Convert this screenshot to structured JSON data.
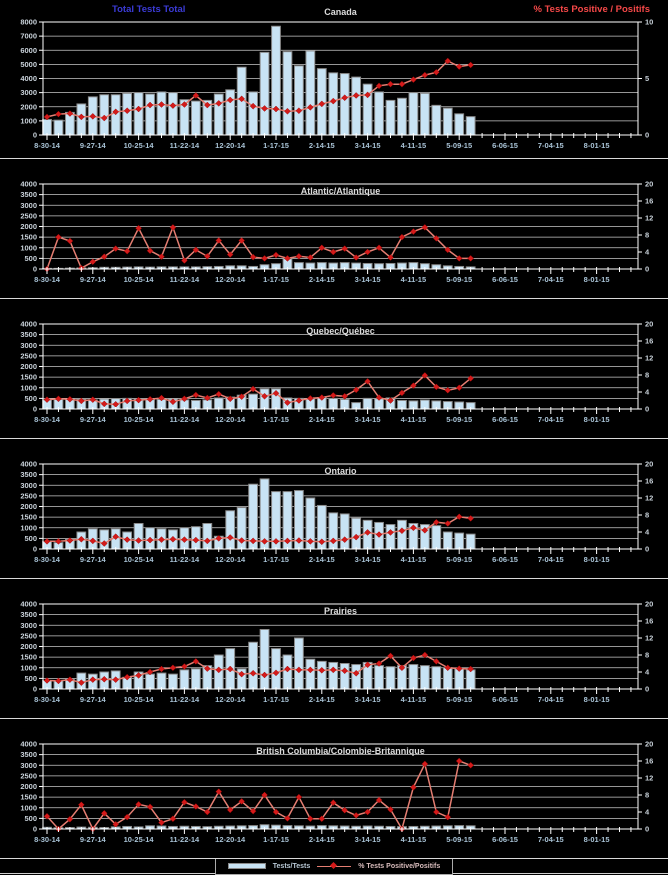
{
  "page": {
    "background": "#000000"
  },
  "header": {
    "left_axis_title": "Total Tests Total",
    "right_axis_title": "% Tests Positive / Positifs"
  },
  "legend": {
    "bar_label": "Tests/Tests",
    "line_label": "% Tests Positive/Positifs"
  },
  "colors": {
    "background": "#000000",
    "bar_fill": "#c8e3f4",
    "bar_border": "#8a8a8a",
    "line": "#e57e72",
    "marker": "#d41a1a",
    "grid": "#c9c9c9",
    "axis_frame": "#ffffff",
    "y_tick_text": "#c9d2da",
    "x_tick_text": "#a9c3d6",
    "panel_title": "#dddddd",
    "left_title": "#3b3bd6",
    "right_title": "#f54848"
  },
  "x_axis": {
    "start": "8-30-14",
    "interval": "weekly",
    "tick_labels": [
      "8-30-14",
      "9-27-14",
      "10-25-14",
      "11-22-14",
      "12-20-14",
      "1-17-15",
      "2-14-15",
      "3-14-15",
      "4-11-15",
      "5-09-15",
      "6-06-15",
      "7-04-15",
      "8-01-15"
    ]
  },
  "chart_data": [
    {
      "id": "canada",
      "type": "bar+line",
      "title": "Canada",
      "ylabel_left": "Total Tests Total",
      "ylabel_right": "% Tests Positive / Positifs",
      "y_left_max": 8000,
      "y_left_step": 1000,
      "y_right_max": 10,
      "y_right_ticks": [
        0,
        5,
        10
      ],
      "tests": [
        1100,
        1050,
        1600,
        2200,
        2700,
        2850,
        2850,
        2950,
        3000,
        2900,
        3050,
        3000,
        2500,
        2400,
        2450,
        2900,
        3200,
        4800,
        3050,
        5850,
        7700,
        5900,
        4900,
        5950,
        4700,
        4400,
        4350,
        4100,
        3600,
        3050,
        2450,
        2600,
        3000,
        2950,
        2100,
        1900,
        1500,
        1300
      ],
      "pct_positive": [
        1.6,
        1.85,
        1.9,
        1.6,
        1.65,
        1.5,
        2.05,
        2.15,
        2.3,
        2.65,
        2.7,
        2.6,
        2.7,
        3.5,
        2.65,
        2.8,
        3.1,
        3.2,
        2.55,
        2.35,
        2.3,
        2.1,
        2.15,
        2.45,
        2.75,
        3.0,
        3.3,
        3.5,
        3.55,
        4.35,
        4.5,
        4.5,
        4.9,
        5.3,
        5.55,
        6.55,
        6.05,
        6.2
      ]
    },
    {
      "id": "atlantic",
      "type": "bar+line",
      "title": "Atlantic/Atlantique",
      "y_left_max": 4000,
      "y_left_step": 500,
      "y_right_max": 20,
      "y_right_ticks": [
        0,
        4,
        8,
        12,
        16,
        20
      ],
      "tests": [
        30,
        30,
        40,
        50,
        60,
        80,
        80,
        90,
        100,
        90,
        100,
        100,
        100,
        100,
        110,
        120,
        150,
        150,
        120,
        200,
        250,
        480,
        300,
        280,
        300,
        280,
        300,
        280,
        260,
        250,
        260,
        280,
        300,
        250,
        200,
        150,
        120,
        100
      ],
      "pct_positive": [
        0,
        7.5,
        6.6,
        0.2,
        1.7,
        2.9,
        4.8,
        4.2,
        9.6,
        4.3,
        2.9,
        9.8,
        2.0,
        4.5,
        3.0,
        6.7,
        3.4,
        6.7,
        2.8,
        2.5,
        3.3,
        2.5,
        3.0,
        2.7,
        5.0,
        4.0,
        4.8,
        2.7,
        4.0,
        5.0,
        2.7,
        7.5,
        8.8,
        9.8,
        7.2,
        4.5,
        2.5,
        2.5
      ]
    },
    {
      "id": "quebec",
      "type": "bar+line",
      "title": "Quebec/Québec",
      "y_left_max": 4000,
      "y_left_step": 500,
      "y_right_max": 20,
      "y_right_ticks": [
        0,
        4,
        8,
        12,
        16,
        20
      ],
      "tests": [
        430,
        450,
        470,
        450,
        430,
        470,
        490,
        500,
        480,
        440,
        450,
        470,
        430,
        400,
        430,
        520,
        560,
        650,
        700,
        950,
        950,
        520,
        500,
        480,
        540,
        500,
        450,
        300,
        500,
        480,
        520,
        400,
        380,
        420,
        380,
        350,
        330,
        300
      ],
      "pct_positive": [
        2.2,
        2.4,
        2.3,
        1.9,
        2.2,
        1.2,
        1.1,
        1.9,
        2.1,
        2.3,
        2.6,
        1.7,
        2.4,
        3.3,
        2.6,
        3.5,
        2.4,
        2.9,
        4.7,
        3.0,
        3.7,
        1.5,
        2.0,
        2.5,
        2.7,
        3.2,
        3.0,
        4.5,
        6.5,
        2.7,
        2.0,
        3.8,
        5.5,
        7.9,
        5.2,
        4.4,
        5.0,
        7.2
      ]
    },
    {
      "id": "ontario",
      "type": "bar+line",
      "title": "Ontario",
      "y_left_max": 4000,
      "y_left_step": 500,
      "y_right_max": 20,
      "y_right_ticks": [
        0,
        4,
        8,
        12,
        16,
        20
      ],
      "tests": [
        350,
        300,
        450,
        800,
        950,
        900,
        950,
        800,
        1200,
        1000,
        950,
        900,
        1000,
        1050,
        1200,
        600,
        1800,
        1950,
        3050,
        3300,
        2700,
        2700,
        2750,
        2400,
        2050,
        1700,
        1650,
        1450,
        1350,
        1250,
        1150,
        1350,
        1200,
        1150,
        1100,
        800,
        750,
        700
      ],
      "pct_positive": [
        1.8,
        1.8,
        2.0,
        2.3,
        1.9,
        1.3,
        2.9,
        2.2,
        2.0,
        2.1,
        2.2,
        2.3,
        2.2,
        2.1,
        1.9,
        2.5,
        2.7,
        2.0,
        1.9,
        1.8,
        1.8,
        1.9,
        2.0,
        1.8,
        1.7,
        1.9,
        2.2,
        2.8,
        3.9,
        3.4,
        3.9,
        4.3,
        5.0,
        4.4,
        6.3,
        6.0,
        7.6,
        7.2
      ]
    },
    {
      "id": "prairies",
      "type": "bar+line",
      "title": "Prairies",
      "y_left_max": 4000,
      "y_left_step": 500,
      "y_right_max": 20,
      "y_right_ticks": [
        0,
        4,
        8,
        12,
        16,
        20
      ],
      "tests": [
        400,
        400,
        450,
        750,
        700,
        800,
        850,
        550,
        800,
        700,
        750,
        700,
        900,
        950,
        1100,
        1600,
        1900,
        950,
        2200,
        2800,
        1900,
        1600,
        2400,
        1400,
        1300,
        1250,
        1200,
        1150,
        1250,
        1100,
        1050,
        1100,
        1150,
        1100,
        1050,
        1000,
        950,
        900
      ],
      "pct_positive": [
        2.0,
        1.9,
        2.2,
        1.5,
        2.2,
        2.3,
        2.2,
        2.8,
        3.2,
        4.0,
        4.7,
        5.0,
        5.3,
        6.5,
        4.8,
        4.5,
        4.7,
        3.5,
        3.7,
        3.3,
        3.8,
        4.7,
        4.5,
        4.5,
        4.4,
        4.5,
        4.3,
        3.7,
        5.7,
        6.0,
        7.8,
        5.0,
        7.3,
        8.0,
        6.5,
        5.0,
        4.8,
        4.7
      ]
    },
    {
      "id": "bc",
      "type": "bar+line",
      "title": "British Columbia/Colombie-Britannique",
      "y_left_max": 4000,
      "y_left_step": 500,
      "y_right_max": 20,
      "y_right_ticks": [
        0,
        4,
        8,
        12,
        16,
        20
      ],
      "tests": [
        80,
        60,
        70,
        90,
        80,
        70,
        100,
        120,
        100,
        150,
        140,
        120,
        130,
        120,
        110,
        130,
        140,
        150,
        160,
        200,
        180,
        160,
        150,
        140,
        160,
        150,
        140,
        130,
        140,
        130,
        120,
        110,
        120,
        130,
        140,
        150,
        160,
        150
      ],
      "pct_positive": [
        3.0,
        0,
        2.3,
        5.7,
        0,
        3.7,
        1.1,
        2.8,
        5.8,
        5.2,
        1.5,
        2.4,
        6.3,
        5.3,
        4.0,
        8.8,
        4.5,
        6.5,
        4.2,
        8.0,
        4.0,
        2.5,
        7.5,
        2.4,
        2.4,
        6.2,
        4.4,
        3.2,
        4.0,
        6.8,
        4.6,
        0,
        9.8,
        15.3,
        4.0,
        2.8,
        16.0,
        15.0
      ]
    }
  ]
}
